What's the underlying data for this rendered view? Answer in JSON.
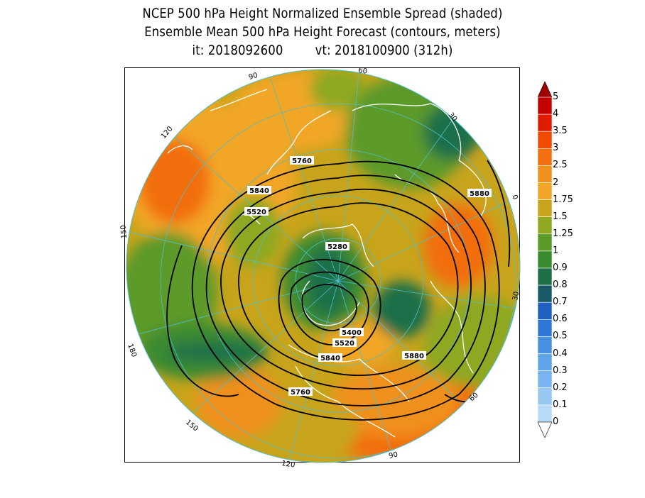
{
  "titles": {
    "line1": "NCEP 500 hPa Height Normalized Ensemble Spread (shaded)",
    "line2": "Ensemble Mean 500 hPa Height Forecast (contours, meters)",
    "init": "it: 2018092600",
    "valid": "vt: 2018100900 (312h)"
  },
  "map": {
    "projection": "north-polar-stereographic",
    "longitude_labels": [
      "60",
      "30",
      "0",
      "30",
      "60",
      "90",
      "120",
      "150",
      "180",
      "150",
      "120",
      "90"
    ],
    "contour_labels": [
      "5760",
      "5840",
      "5520",
      "5280",
      "5880",
      "5400",
      "5520",
      "5840",
      "5880",
      "5760"
    ],
    "contour_color": "#000000",
    "coastline_color": "#ffffff",
    "gridline_color": "#4fbfc9"
  },
  "legend": {
    "labels": [
      "5",
      "4",
      "3.5",
      "3",
      "2.5",
      "2",
      "1.75",
      "1.5",
      "1.25",
      "1",
      "0.9",
      "0.8",
      "0.7",
      "0.6",
      "0.5",
      "0.4",
      "0.3",
      "0.2",
      "0.1",
      "0"
    ],
    "colors": [
      "#a00000",
      "#c40000",
      "#e01c00",
      "#f24a00",
      "#f26e10",
      "#f0901e",
      "#f2a628",
      "#c8a41a",
      "#8ea820",
      "#5c9a2a",
      "#3a8a30",
      "#1e7048",
      "#1a5a68",
      "#2060c0",
      "#3078d8",
      "#4890e0",
      "#60a4e8",
      "#78b4ee",
      "#96c8f2",
      "#b8dcf8"
    ]
  }
}
